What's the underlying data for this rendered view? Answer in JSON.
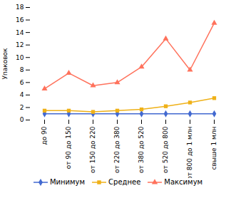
{
  "chart_data": {
    "type": "line",
    "categories": [
      "до 90",
      "от 90 до 150",
      "от 150 до 220",
      "от 220 до 380",
      "от 380 до 520",
      "от 520 до 800",
      "от 800 до 1 млн",
      "свыше 1 млн"
    ],
    "series": [
      {
        "name": "Минимум",
        "values": [
          1.0,
          1.0,
          1.0,
          1.0,
          1.0,
          1.0,
          1.0,
          1.0
        ],
        "marker": "diamond"
      },
      {
        "name": "Среднее",
        "values": [
          1.5,
          1.5,
          1.3,
          1.5,
          1.7,
          2.2,
          2.8,
          3.5
        ],
        "marker": "square"
      },
      {
        "name": "Максимум",
        "values": [
          5.0,
          7.5,
          5.5,
          6.0,
          8.5,
          13.0,
          8.0,
          15.5
        ],
        "marker": "triangle"
      }
    ],
    "ylabel": "Упаковок",
    "ylim": [
      0,
      18
    ],
    "yticks": [
      0,
      2,
      4,
      6,
      8,
      10,
      12,
      14,
      16,
      18
    ],
    "grid": false,
    "legend": "bottom"
  }
}
